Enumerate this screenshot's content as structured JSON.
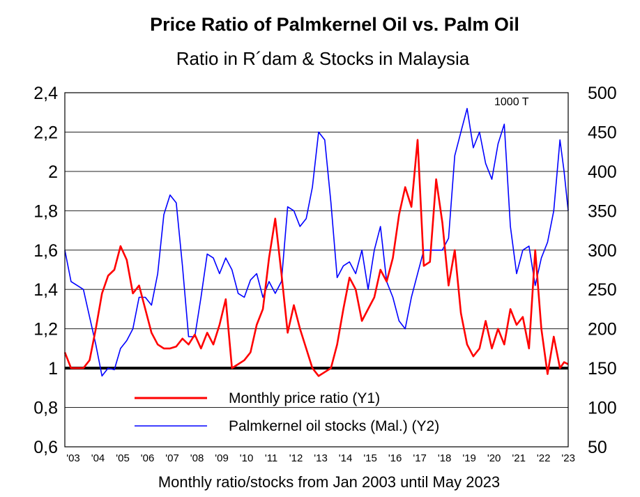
{
  "chart_data": {
    "type": "line",
    "title": "Price Ratio of Palmkernel Oil vs. Palm Oil",
    "subtitle": "Ratio in R´dam & Stocks in Malaysia",
    "xlabel": "Monthly ratio/stocks from Jan 2003 until May 2023",
    "annotation": "1000 T",
    "x_start": "2003-01",
    "x_end": "2023-05",
    "x_tick_labels": [
      "'03",
      "'04",
      "'05",
      "'06",
      "'07",
      "'08",
      "'09",
      "'10",
      "'11",
      "'12",
      "'13",
      "'14",
      "'15",
      "'16",
      "'17",
      "'18",
      "'19",
      "'20",
      "'21",
      "'22",
      "'23"
    ],
    "y1": {
      "ylim": [
        0.6,
        2.4
      ],
      "ticks": [
        0.6,
        0.8,
        1.0,
        1.2,
        1.4,
        1.6,
        1.8,
        2.0,
        2.2,
        2.4
      ],
      "tick_labels": [
        "0,6",
        "0,8",
        "1",
        "1,2",
        "1,4",
        "1,6",
        "1,8",
        "2",
        "2,2",
        "2,4"
      ],
      "reference_line": 1.0
    },
    "y2": {
      "ylim": [
        50,
        500
      ],
      "ticks": [
        50,
        100,
        150,
        200,
        250,
        300,
        350,
        400,
        450,
        500
      ],
      "tick_labels": [
        "50",
        "100",
        "150",
        "200",
        "250",
        "300",
        "350",
        "400",
        "450",
        "500"
      ]
    },
    "grid": true,
    "legend_position": "bottom-center",
    "series": [
      {
        "name": "Monthly price ratio (Y1)",
        "axis": "y1",
        "color": "#ff0000",
        "points": [
          [
            "2003-01",
            1.08
          ],
          [
            "2003-04",
            1.0
          ],
          [
            "2003-07",
            1.0
          ],
          [
            "2003-10",
            1.0
          ],
          [
            "2004-01",
            1.04
          ],
          [
            "2004-04",
            1.2
          ],
          [
            "2004-07",
            1.38
          ],
          [
            "2004-10",
            1.47
          ],
          [
            "2005-01",
            1.5
          ],
          [
            "2005-04",
            1.62
          ],
          [
            "2005-07",
            1.55
          ],
          [
            "2005-10",
            1.38
          ],
          [
            "2006-01",
            1.42
          ],
          [
            "2006-04",
            1.3
          ],
          [
            "2006-07",
            1.18
          ],
          [
            "2006-10",
            1.12
          ],
          [
            "2007-01",
            1.1
          ],
          [
            "2007-04",
            1.1
          ],
          [
            "2007-07",
            1.11
          ],
          [
            "2007-10",
            1.15
          ],
          [
            "2008-01",
            1.12
          ],
          [
            "2008-04",
            1.17
          ],
          [
            "2008-07",
            1.1
          ],
          [
            "2008-10",
            1.18
          ],
          [
            "2009-01",
            1.12
          ],
          [
            "2009-04",
            1.22
          ],
          [
            "2009-07",
            1.35
          ],
          [
            "2009-10",
            1.0
          ],
          [
            "2010-01",
            1.02
          ],
          [
            "2010-04",
            1.04
          ],
          [
            "2010-07",
            1.08
          ],
          [
            "2010-10",
            1.22
          ],
          [
            "2011-01",
            1.3
          ],
          [
            "2011-04",
            1.56
          ],
          [
            "2011-07",
            1.76
          ],
          [
            "2011-10",
            1.48
          ],
          [
            "2012-01",
            1.18
          ],
          [
            "2012-04",
            1.32
          ],
          [
            "2012-07",
            1.2
          ],
          [
            "2012-10",
            1.1
          ],
          [
            "2013-01",
            1.0
          ],
          [
            "2013-04",
            0.96
          ],
          [
            "2013-07",
            0.98
          ],
          [
            "2013-10",
            1.0
          ],
          [
            "2014-01",
            1.12
          ],
          [
            "2014-04",
            1.3
          ],
          [
            "2014-07",
            1.46
          ],
          [
            "2014-10",
            1.4
          ],
          [
            "2015-01",
            1.24
          ],
          [
            "2015-04",
            1.3
          ],
          [
            "2015-07",
            1.36
          ],
          [
            "2015-10",
            1.5
          ],
          [
            "2016-01",
            1.44
          ],
          [
            "2016-04",
            1.56
          ],
          [
            "2016-07",
            1.78
          ],
          [
            "2016-10",
            1.92
          ],
          [
            "2017-01",
            1.82
          ],
          [
            "2017-04",
            2.16
          ],
          [
            "2017-07",
            1.52
          ],
          [
            "2017-10",
            1.54
          ],
          [
            "2018-01",
            1.96
          ],
          [
            "2018-04",
            1.74
          ],
          [
            "2018-07",
            1.42
          ],
          [
            "2018-10",
            1.6
          ],
          [
            "2019-01",
            1.28
          ],
          [
            "2019-04",
            1.12
          ],
          [
            "2019-07",
            1.06
          ],
          [
            "2019-10",
            1.1
          ],
          [
            "2020-01",
            1.24
          ],
          [
            "2020-04",
            1.1
          ],
          [
            "2020-07",
            1.2
          ],
          [
            "2020-10",
            1.12
          ],
          [
            "2021-01",
            1.3
          ],
          [
            "2021-04",
            1.22
          ],
          [
            "2021-07",
            1.26
          ],
          [
            "2021-10",
            1.1
          ],
          [
            "2022-01",
            1.6
          ],
          [
            "2022-04",
            1.2
          ],
          [
            "2022-07",
            0.97
          ],
          [
            "2022-10",
            1.16
          ],
          [
            "2023-01",
            1.0
          ],
          [
            "2023-03",
            1.03
          ],
          [
            "2023-05",
            1.02
          ]
        ]
      },
      {
        "name": "Palmkernel oil stocks (Mal.) (Y2)",
        "axis": "y2",
        "color": "#0000ff",
        "points": [
          [
            "2003-01",
            300
          ],
          [
            "2003-04",
            260
          ],
          [
            "2003-07",
            255
          ],
          [
            "2003-10",
            250
          ],
          [
            "2004-01",
            215
          ],
          [
            "2004-04",
            180
          ],
          [
            "2004-07",
            140
          ],
          [
            "2004-10",
            150
          ],
          [
            "2005-01",
            148
          ],
          [
            "2005-04",
            175
          ],
          [
            "2005-07",
            185
          ],
          [
            "2005-10",
            200
          ],
          [
            "2006-01",
            240
          ],
          [
            "2006-04",
            240
          ],
          [
            "2006-07",
            230
          ],
          [
            "2006-10",
            270
          ],
          [
            "2007-01",
            345
          ],
          [
            "2007-04",
            370
          ],
          [
            "2007-07",
            360
          ],
          [
            "2007-10",
            280
          ],
          [
            "2008-01",
            190
          ],
          [
            "2008-04",
            190
          ],
          [
            "2008-07",
            240
          ],
          [
            "2008-10",
            295
          ],
          [
            "2009-01",
            290
          ],
          [
            "2009-04",
            270
          ],
          [
            "2009-07",
            290
          ],
          [
            "2009-10",
            275
          ],
          [
            "2010-01",
            245
          ],
          [
            "2010-04",
            240
          ],
          [
            "2010-07",
            262
          ],
          [
            "2010-10",
            270
          ],
          [
            "2011-01",
            240
          ],
          [
            "2011-04",
            260
          ],
          [
            "2011-07",
            245
          ],
          [
            "2011-10",
            260
          ],
          [
            "2012-01",
            355
          ],
          [
            "2012-04",
            350
          ],
          [
            "2012-07",
            330
          ],
          [
            "2012-10",
            340
          ],
          [
            "2013-01",
            380
          ],
          [
            "2013-04",
            450
          ],
          [
            "2013-07",
            440
          ],
          [
            "2013-10",
            360
          ],
          [
            "2014-01",
            265
          ],
          [
            "2014-04",
            280
          ],
          [
            "2014-07",
            285
          ],
          [
            "2014-10",
            270
          ],
          [
            "2015-01",
            300
          ],
          [
            "2015-04",
            250
          ],
          [
            "2015-07",
            300
          ],
          [
            "2015-10",
            330
          ],
          [
            "2016-01",
            260
          ],
          [
            "2016-04",
            240
          ],
          [
            "2016-07",
            210
          ],
          [
            "2016-10",
            200
          ],
          [
            "2017-01",
            240
          ],
          [
            "2017-04",
            270
          ],
          [
            "2017-07",
            300
          ],
          [
            "2017-10",
            300
          ],
          [
            "2018-01",
            300
          ],
          [
            "2018-04",
            300
          ],
          [
            "2018-07",
            315
          ],
          [
            "2018-10",
            420
          ],
          [
            "2019-01",
            450
          ],
          [
            "2019-04",
            480
          ],
          [
            "2019-07",
            430
          ],
          [
            "2019-10",
            450
          ],
          [
            "2020-01",
            410
          ],
          [
            "2020-04",
            390
          ],
          [
            "2020-07",
            435
          ],
          [
            "2020-10",
            460
          ],
          [
            "2021-01",
            330
          ],
          [
            "2021-04",
            270
          ],
          [
            "2021-07",
            300
          ],
          [
            "2021-10",
            305
          ],
          [
            "2022-01",
            255
          ],
          [
            "2022-04",
            290
          ],
          [
            "2022-07",
            310
          ],
          [
            "2022-10",
            350
          ],
          [
            "2023-01",
            440
          ],
          [
            "2023-03",
            400
          ],
          [
            "2023-05",
            350
          ]
        ]
      }
    ]
  }
}
